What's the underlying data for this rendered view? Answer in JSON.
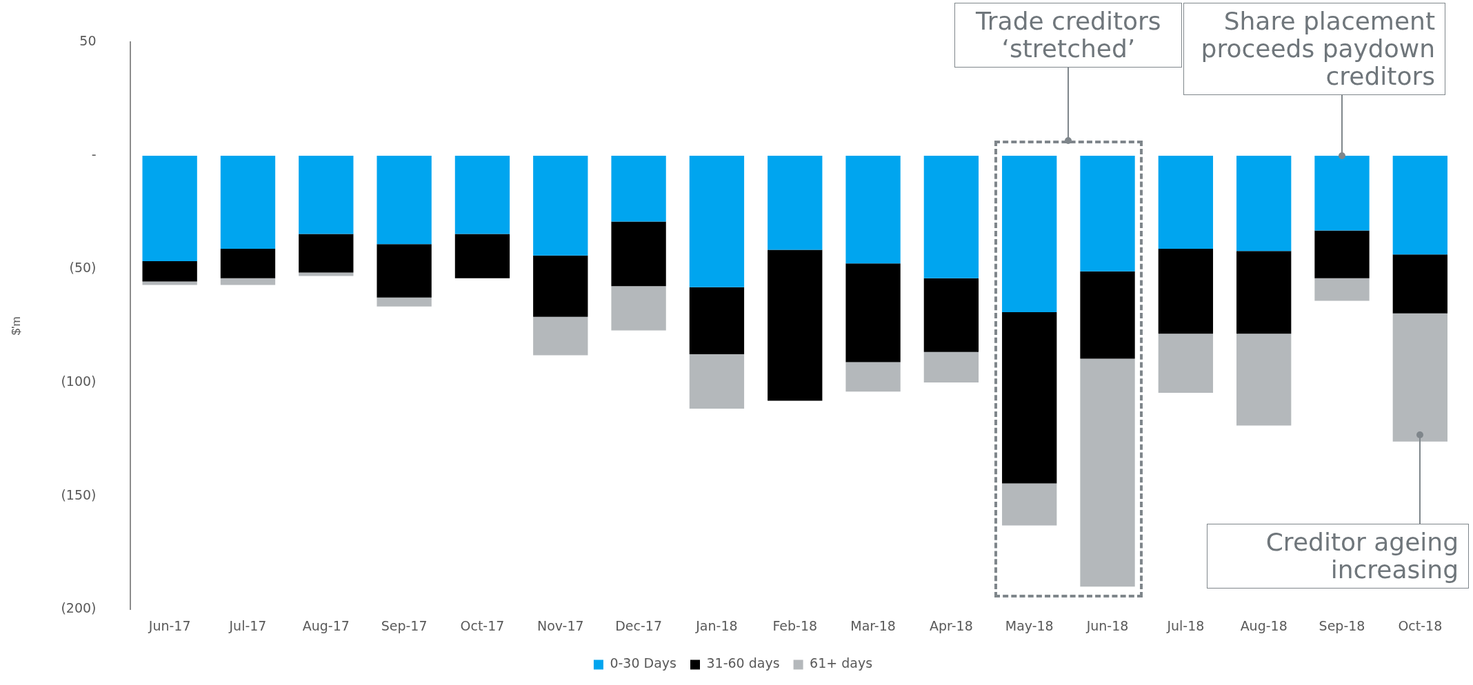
{
  "chart_data": {
    "type": "bar",
    "stacked": true,
    "ylabel": "$'m",
    "categories": [
      "Jun-17",
      "Jul-17",
      "Aug-17",
      "Sep-17",
      "Oct-17",
      "Nov-17",
      "Dec-17",
      "Jan-18",
      "Feb-18",
      "Mar-18",
      "Apr-18",
      "May-18",
      "Jun-18",
      "Jul-18",
      "Aug-18",
      "Sep-18",
      "Oct-18"
    ],
    "series": [
      {
        "name": "0-30 Days",
        "color": "#00a5ef",
        "values": [
          -46.5,
          -41,
          -34.5,
          -39,
          -34.5,
          -44,
          -29,
          -58,
          -41.5,
          -47.5,
          -54,
          -69,
          -51,
          -41,
          -42,
          -33,
          -43.5
        ]
      },
      {
        "name": "31-60 days",
        "color": "#000000",
        "values": [
          -9,
          -13,
          -17,
          -23.5,
          -19.5,
          -27,
          -28.5,
          -29.5,
          -66.5,
          -43.5,
          -32.5,
          -75.5,
          -38.5,
          -37.5,
          -36.5,
          -21,
          -26
        ]
      },
      {
        "name": "61+ days",
        "color": "#b4b8bb",
        "values": [
          -1.5,
          -3,
          -1.5,
          -4,
          null,
          -17,
          -19.5,
          -24,
          null,
          -13,
          -13.5,
          -18.5,
          -100.5,
          -26,
          -40.5,
          -10,
          -56.5
        ]
      }
    ],
    "ylim": [
      -200,
      50
    ],
    "yticks": [
      {
        "value": -200,
        "label": "(200)"
      },
      {
        "value": -150,
        "label": "(150)"
      },
      {
        "value": -100,
        "label": "(100)"
      },
      {
        "value": -50,
        "label": "(50)"
      },
      {
        "value": 0,
        "label": "-"
      },
      50
    ],
    "grid": false,
    "legend": "bottom",
    "annotations": [
      "Trade creditors ‘stretched’",
      {
        "text": "Share placement proceeds paydown creditors",
        "x": "Sep-18",
        "y": 0
      },
      {
        "text": "Creditor ageing increasing",
        "x": "Oct-18",
        "y": -123
      }
    ]
  }
}
